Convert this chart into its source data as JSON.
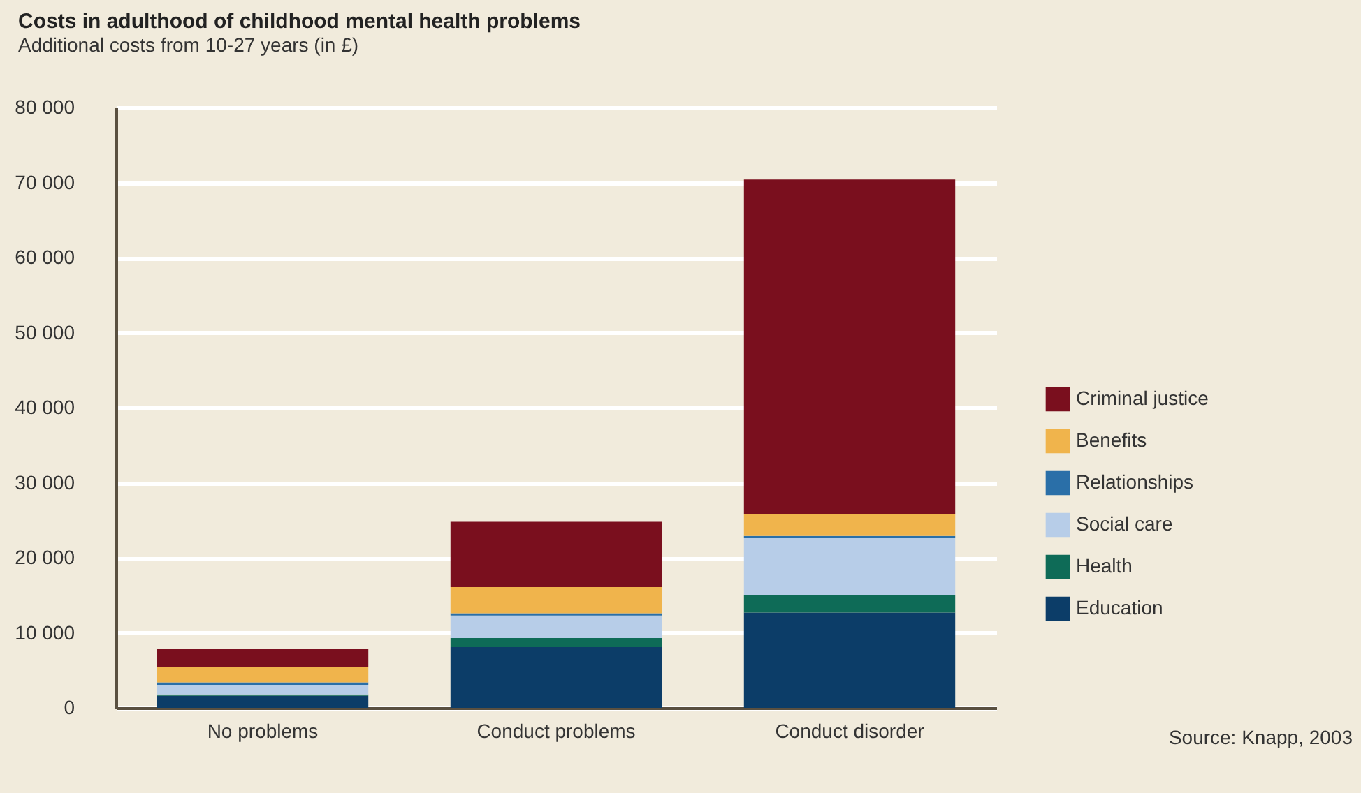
{
  "chart_data": {
    "type": "bar",
    "title": "Costs in adulthood of childhood mental health problems",
    "subtitle": "Additional costs from 10-27 years (in £)",
    "categories": [
      "No problems",
      "Conduct problems",
      "Conduct disorder"
    ],
    "stacked": true,
    "series": [
      {
        "name": "Education",
        "color": "#0c3d68",
        "values": [
          1600,
          8100,
          12700
        ]
      },
      {
        "name": "Health",
        "color": "#0e6b57",
        "values": [
          200,
          1200,
          2300
        ]
      },
      {
        "name": "Social care",
        "color": "#b7cde8",
        "values": [
          1200,
          3000,
          7600
        ]
      },
      {
        "name": "Relationships",
        "color": "#2a6fa8",
        "values": [
          400,
          300,
          300
        ]
      },
      {
        "name": "Benefits",
        "color": "#f0b44c",
        "values": [
          2000,
          3500,
          2900
        ]
      },
      {
        "name": "Criminal justice",
        "color": "#7a0f1e",
        "values": [
          2500,
          8700,
          44600
        ]
      }
    ],
    "ylim": [
      0,
      80000
    ],
    "yticks": [
      0,
      {
        "value": 10000,
        "label": "10 000"
      },
      {
        "value": 20000,
        "label": "20 000"
      },
      {
        "value": 30000,
        "label": "30 000"
      },
      {
        "value": 40000,
        "label": "40 000"
      },
      {
        "value": 50000,
        "label": "50 000"
      },
      {
        "value": 60000,
        "label": "60 000"
      },
      {
        "value": 70000,
        "label": "70 000"
      },
      {
        "value": 80000,
        "label": "80 000"
      }
    ],
    "grid": "y",
    "legend": "right",
    "annotations": [
      "Source: Knapp, 2003"
    ]
  }
}
